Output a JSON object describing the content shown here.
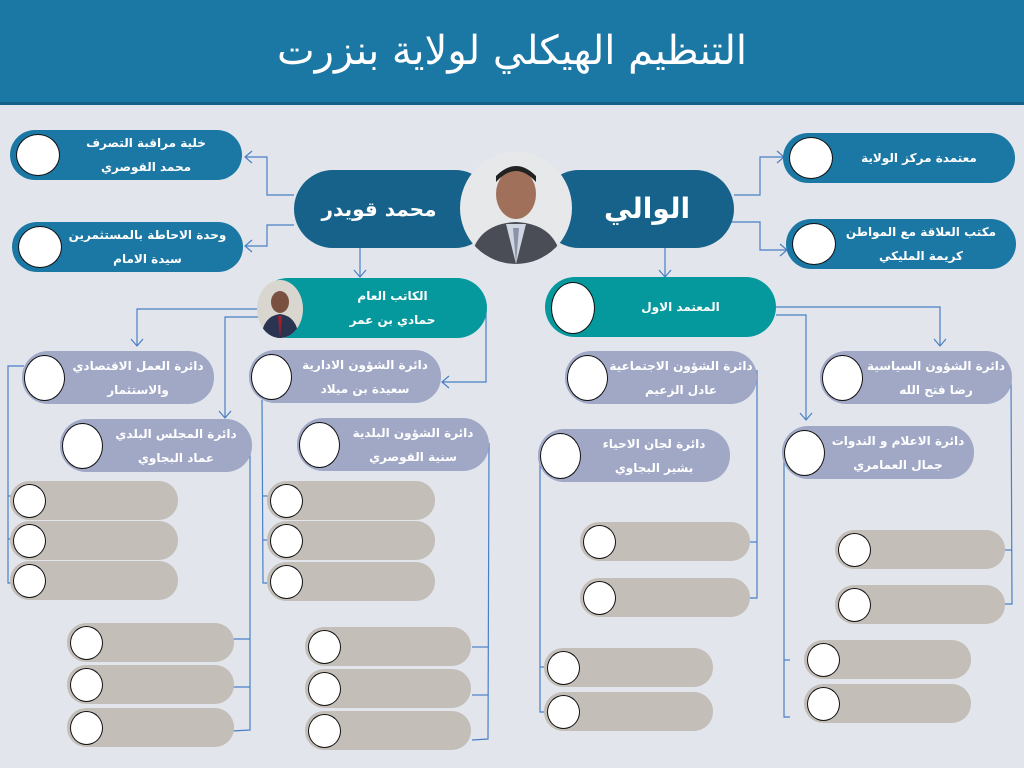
{
  "title": "التنظيم الهيكلي لولاية بنزرت",
  "governor": {
    "label": "الوالي"
  },
  "chief_of_staff": {
    "name": "محمد قويدر"
  },
  "left_units": [
    {
      "title": "خلية مراقبة التصرف",
      "name": "محمد القوصري"
    },
    {
      "title": "وحدة الاحاطة بالمستثمرين",
      "name": "سيدة الامام"
    }
  ],
  "right_units": [
    {
      "title": "معتمدة مركز الولاية",
      "name": ""
    },
    {
      "title": "مكتب العلاقة مع المواطن",
      "name": "كريمة المليكي"
    }
  ],
  "secretary_general": {
    "title": "الكاتب العام",
    "name": "حمادي بن عمر"
  },
  "first_delegate": {
    "title": "المعتمد الاول"
  },
  "departments": [
    {
      "title": "دائرة العمل الاقتصادي",
      "name": "والاستثمار"
    },
    {
      "title": "دائرة الشؤون الادارية",
      "name": "سعيدة  بن ميلاد"
    },
    {
      "title": "دائرة المجلس البلدي",
      "name": "عماد البجاوي"
    },
    {
      "title": "دائرة الشؤون البلدية",
      "name": "سنية القوصري"
    },
    {
      "title": "دائرة الشؤون الاجتماعية",
      "name": "عادل الزعيم"
    },
    {
      "title": "دائرة لجان الاحياء",
      "name": "بشير البجاوي"
    },
    {
      "title": "دائرة الشؤون السياسية",
      "name": "رضا فتح الله"
    },
    {
      "title": "دائرة الاعلام و الندوات",
      "name": "جمال العمامري"
    }
  ],
  "colors": {
    "title_bar": "#1b77a4",
    "dark": "#17628a",
    "teal": "#05999d",
    "department": "#a0a8c6",
    "empty_box": "#c3beb8",
    "connector": "#4a7fc4"
  }
}
